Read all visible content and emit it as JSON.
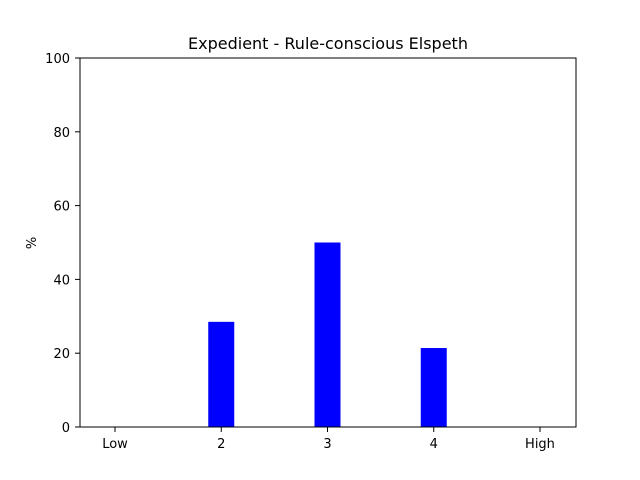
{
  "chart_data": {
    "type": "bar",
    "title": "Expedient - Rule-conscious Elspeth",
    "xlabel": "",
    "ylabel": "%",
    "categories": [
      "Low",
      "2",
      "3",
      "4",
      "High"
    ],
    "values": [
      0,
      28.5,
      50,
      21.4,
      0
    ],
    "ylim": [
      0,
      100
    ],
    "yticks": [
      "0",
      "20",
      "40",
      "60",
      "80",
      "100"
    ],
    "bar_color": "#0000ff",
    "grid": false
  }
}
